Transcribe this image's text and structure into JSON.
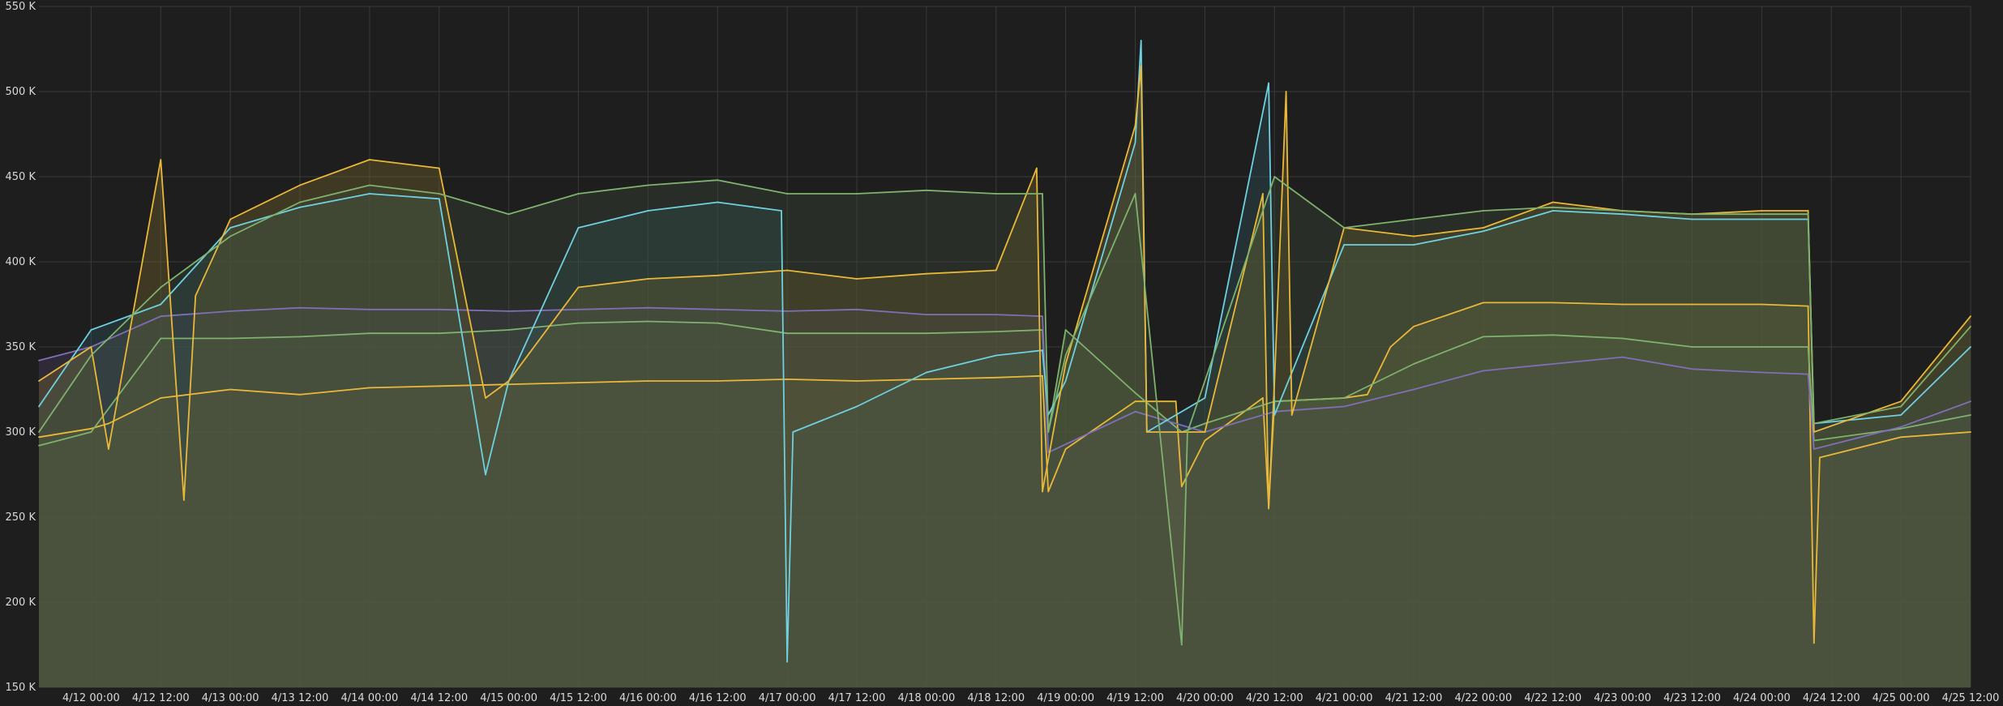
{
  "chart_data": {
    "type": "area",
    "title": "",
    "xlabel": "",
    "ylabel": "",
    "ylim": [
      150000,
      550000
    ],
    "xlim": [
      "2024-04-11T15:00",
      "2024-04-25T12:00"
    ],
    "grid": true,
    "legend": "none",
    "y_ticks": [
      "150 K",
      "200 K",
      "250 K",
      "300 K",
      "350 K",
      "400 K",
      "450 K",
      "500 K",
      "550 K"
    ],
    "x_ticks": [
      "4/12 00:00",
      "4/12 12:00",
      "4/13 00:00",
      "4/13 12:00",
      "4/14 00:00",
      "4/14 12:00",
      "4/15 00:00",
      "4/15 12:00",
      "4/16 00:00",
      "4/16 12:00",
      "4/17 00:00",
      "4/17 12:00",
      "4/18 00:00",
      "4/18 12:00",
      "4/19 00:00",
      "4/19 12:00",
      "4/20 00:00",
      "4/20 12:00",
      "4/21 00:00",
      "4/21 12:00",
      "4/22 00:00",
      "4/22 12:00",
      "4/23 00:00",
      "4/23 12:00",
      "4/24 00:00",
      "4/24 12:00",
      "4/25 00:00",
      "4/25 12:00"
    ],
    "colors": {
      "background": "#1f1e1f",
      "grid": "#3a3a3a",
      "text": "#d8d9da"
    },
    "series": [
      {
        "color": "#eab839",
        "fill": "#7a7a3a",
        "values": [
          [
            "2024-04-11T15:00",
            297000
          ],
          [
            "2024-04-12T00:00",
            302000
          ],
          [
            "2024-04-12T03:00",
            305000
          ],
          [
            "2024-04-12T12:00",
            320000
          ],
          [
            "2024-04-13T00:00",
            325000
          ],
          [
            "2024-04-13T12:00",
            322000
          ],
          [
            "2024-04-14T00:00",
            326000
          ],
          [
            "2024-04-14T12:00",
            327000
          ],
          [
            "2024-04-15T00:00",
            328000
          ],
          [
            "2024-04-15T12:00",
            329000
          ],
          [
            "2024-04-16T00:00",
            330000
          ],
          [
            "2024-04-16T12:00",
            330000
          ],
          [
            "2024-04-17T00:00",
            331000
          ],
          [
            "2024-04-17T12:00",
            330000
          ],
          [
            "2024-04-18T00:00",
            331000
          ],
          [
            "2024-04-18T12:00",
            332000
          ],
          [
            "2024-04-18T20:00",
            333000
          ],
          [
            "2024-04-18T21:00",
            265000
          ],
          [
            "2024-04-19T00:00",
            290000
          ],
          [
            "2024-04-19T12:00",
            318000
          ],
          [
            "2024-04-19T19:00",
            318000
          ],
          [
            "2024-04-19T20:00",
            268000
          ],
          [
            "2024-04-20T00:00",
            295000
          ],
          [
            "2024-04-20T10:00",
            320000
          ],
          [
            "2024-04-20T11:00",
            256000
          ],
          [
            "2024-04-20T12:00",
            318000
          ],
          [
            "2024-04-21T00:00",
            320000
          ],
          [
            "2024-04-21T04:00",
            322000
          ],
          [
            "2024-04-21T08:00",
            350000
          ],
          [
            "2024-04-21T12:00",
            362000
          ],
          [
            "2024-04-22T00:00",
            376000
          ],
          [
            "2024-04-22T12:00",
            376000
          ],
          [
            "2024-04-23T00:00",
            375000
          ],
          [
            "2024-04-23T12:00",
            375000
          ],
          [
            "2024-04-24T00:00",
            375000
          ],
          [
            "2024-04-24T08:00",
            374000
          ],
          [
            "2024-04-24T09:00",
            176000
          ],
          [
            "2024-04-24T10:00",
            285000
          ],
          [
            "2024-04-25T00:00",
            297000
          ],
          [
            "2024-04-25T12:00",
            300000
          ]
        ]
      },
      {
        "color": "#7eb26d",
        "fill": "#4e6a3e",
        "values": [
          [
            "2024-04-11T15:00",
            292000
          ],
          [
            "2024-04-12T00:00",
            300000
          ],
          [
            "2024-04-12T12:00",
            355000
          ],
          [
            "2024-04-13T00:00",
            355000
          ],
          [
            "2024-04-13T12:00",
            356000
          ],
          [
            "2024-04-14T00:00",
            358000
          ],
          [
            "2024-04-14T12:00",
            358000
          ],
          [
            "2024-04-15T00:00",
            360000
          ],
          [
            "2024-04-15T12:00",
            364000
          ],
          [
            "2024-04-16T00:00",
            365000
          ],
          [
            "2024-04-16T12:00",
            364000
          ],
          [
            "2024-04-17T00:00",
            358000
          ],
          [
            "2024-04-17T12:00",
            358000
          ],
          [
            "2024-04-18T00:00",
            358000
          ],
          [
            "2024-04-18T12:00",
            359000
          ],
          [
            "2024-04-18T20:00",
            360000
          ],
          [
            "2024-04-18T21:00",
            300000
          ],
          [
            "2024-04-19T00:00",
            360000
          ],
          [
            "2024-04-19T12:00",
            323000
          ],
          [
            "2024-04-19T20:00",
            300000
          ],
          [
            "2024-04-20T00:00",
            305000
          ],
          [
            "2024-04-20T12:00",
            318000
          ],
          [
            "2024-04-21T00:00",
            320000
          ],
          [
            "2024-04-21T12:00",
            340000
          ],
          [
            "2024-04-22T00:00",
            356000
          ],
          [
            "2024-04-22T12:00",
            357000
          ],
          [
            "2024-04-23T00:00",
            355000
          ],
          [
            "2024-04-23T12:00",
            350000
          ],
          [
            "2024-04-24T00:00",
            350000
          ],
          [
            "2024-04-24T08:00",
            350000
          ],
          [
            "2024-04-24T09:00",
            295000
          ],
          [
            "2024-04-25T00:00",
            302000
          ],
          [
            "2024-04-25T12:00",
            310000
          ]
        ]
      },
      {
        "color": "#806eb7",
        "fill": "#4a4366",
        "values": [
          [
            "2024-04-11T15:00",
            342000
          ],
          [
            "2024-04-12T00:00",
            350000
          ],
          [
            "2024-04-12T12:00",
            368000
          ],
          [
            "2024-04-13T00:00",
            371000
          ],
          [
            "2024-04-13T12:00",
            373000
          ],
          [
            "2024-04-14T00:00",
            372000
          ],
          [
            "2024-04-14T12:00",
            372000
          ],
          [
            "2024-04-15T00:00",
            371000
          ],
          [
            "2024-04-15T12:00",
            372000
          ],
          [
            "2024-04-16T00:00",
            373000
          ],
          [
            "2024-04-16T12:00",
            372000
          ],
          [
            "2024-04-17T00:00",
            371000
          ],
          [
            "2024-04-17T12:00",
            372000
          ],
          [
            "2024-04-18T00:00",
            369000
          ],
          [
            "2024-04-18T12:00",
            369000
          ],
          [
            "2024-04-18T20:00",
            368000
          ],
          [
            "2024-04-18T21:00",
            288000
          ],
          [
            "2024-04-19T12:00",
            312000
          ],
          [
            "2024-04-20T00:00",
            300000
          ],
          [
            "2024-04-20T12:00",
            312000
          ],
          [
            "2024-04-21T00:00",
            315000
          ],
          [
            "2024-04-21T12:00",
            325000
          ],
          [
            "2024-04-22T00:00",
            336000
          ],
          [
            "2024-04-22T12:00",
            340000
          ],
          [
            "2024-04-23T00:00",
            344000
          ],
          [
            "2024-04-23T12:00",
            337000
          ],
          [
            "2024-04-24T00:00",
            335000
          ],
          [
            "2024-04-24T08:00",
            334000
          ],
          [
            "2024-04-24T09:00",
            290000
          ],
          [
            "2024-04-25T00:00",
            303000
          ],
          [
            "2024-04-25T12:00",
            318000
          ]
        ]
      },
      {
        "color": "#6ed0e0",
        "fill": "#2f5a62",
        "values": [
          [
            "2024-04-11T15:00",
            315000
          ],
          [
            "2024-04-12T00:00",
            360000
          ],
          [
            "2024-04-12T12:00",
            375000
          ],
          [
            "2024-04-13T00:00",
            420000
          ],
          [
            "2024-04-13T12:00",
            432000
          ],
          [
            "2024-04-14T00:00",
            440000
          ],
          [
            "2024-04-14T12:00",
            437000
          ],
          [
            "2024-04-14T20:00",
            275000
          ],
          [
            "2024-04-15T00:00",
            330000
          ],
          [
            "2024-04-15T12:00",
            420000
          ],
          [
            "2024-04-16T00:00",
            430000
          ],
          [
            "2024-04-16T12:00",
            435000
          ],
          [
            "2024-04-16T23:00",
            430000
          ],
          [
            "2024-04-17T00:00",
            165000
          ],
          [
            "2024-04-17T01:00",
            300000
          ],
          [
            "2024-04-17T12:00",
            315000
          ],
          [
            "2024-04-18T00:00",
            335000
          ],
          [
            "2024-04-18T12:00",
            345000
          ],
          [
            "2024-04-18T20:00",
            348000
          ],
          [
            "2024-04-18T21:00",
            310000
          ],
          [
            "2024-04-19T00:00",
            330000
          ],
          [
            "2024-04-19T12:00",
            470000
          ],
          [
            "2024-04-19T13:00",
            530000
          ],
          [
            "2024-04-19T14:00",
            300000
          ],
          [
            "2024-04-20T00:00",
            320000
          ],
          [
            "2024-04-20T11:00",
            505000
          ],
          [
            "2024-04-20T12:00",
            310000
          ],
          [
            "2024-04-21T00:00",
            410000
          ],
          [
            "2024-04-21T12:00",
            410000
          ],
          [
            "2024-04-22T00:00",
            418000
          ],
          [
            "2024-04-22T12:00",
            430000
          ],
          [
            "2024-04-23T00:00",
            428000
          ],
          [
            "2024-04-23T12:00",
            425000
          ],
          [
            "2024-04-24T00:00",
            425000
          ],
          [
            "2024-04-24T08:00",
            425000
          ],
          [
            "2024-04-24T09:00",
            305000
          ],
          [
            "2024-04-25T00:00",
            310000
          ],
          [
            "2024-04-25T12:00",
            350000
          ]
        ]
      },
      {
        "color": "#eab839",
        "fill": "#7a6a2a",
        "values": [
          [
            "2024-04-11T15:00",
            330000
          ],
          [
            "2024-04-12T00:00",
            350000
          ],
          [
            "2024-04-12T03:00",
            290000
          ],
          [
            "2024-04-12T12:00",
            460000
          ],
          [
            "2024-04-12T16:00",
            260000
          ],
          [
            "2024-04-12T18:00",
            380000
          ],
          [
            "2024-04-13T00:00",
            425000
          ],
          [
            "2024-04-13T12:00",
            445000
          ],
          [
            "2024-04-14T00:00",
            460000
          ],
          [
            "2024-04-14T12:00",
            455000
          ],
          [
            "2024-04-14T20:00",
            320000
          ],
          [
            "2024-04-15T00:00",
            330000
          ],
          [
            "2024-04-15T12:00",
            385000
          ],
          [
            "2024-04-16T00:00",
            390000
          ],
          [
            "2024-04-16T12:00",
            392000
          ],
          [
            "2024-04-17T00:00",
            395000
          ],
          [
            "2024-04-17T12:00",
            390000
          ],
          [
            "2024-04-18T00:00",
            393000
          ],
          [
            "2024-04-18T12:00",
            395000
          ],
          [
            "2024-04-18T19:00",
            455000
          ],
          [
            "2024-04-18T20:00",
            265000
          ],
          [
            "2024-04-19T00:00",
            340000
          ],
          [
            "2024-04-19T12:00",
            480000
          ],
          [
            "2024-04-19T13:00",
            515000
          ],
          [
            "2024-04-19T14:00",
            300000
          ],
          [
            "2024-04-20T00:00",
            300000
          ],
          [
            "2024-04-20T10:00",
            440000
          ],
          [
            "2024-04-20T11:00",
            255000
          ],
          [
            "2024-04-20T12:00",
            330000
          ],
          [
            "2024-04-20T14:00",
            500000
          ],
          [
            "2024-04-20T15:00",
            310000
          ],
          [
            "2024-04-21T00:00",
            420000
          ],
          [
            "2024-04-21T12:00",
            415000
          ],
          [
            "2024-04-22T00:00",
            420000
          ],
          [
            "2024-04-22T12:00",
            435000
          ],
          [
            "2024-04-23T00:00",
            430000
          ],
          [
            "2024-04-23T12:00",
            428000
          ],
          [
            "2024-04-24T00:00",
            430000
          ],
          [
            "2024-04-24T08:00",
            430000
          ],
          [
            "2024-04-24T09:00",
            300000
          ],
          [
            "2024-04-25T00:00",
            318000
          ],
          [
            "2024-04-25T12:00",
            368000
          ]
        ]
      },
      {
        "color": "#7eb26d",
        "fill": "#3c4a36",
        "values": [
          [
            "2024-04-11T15:00",
            300000
          ],
          [
            "2024-04-12T00:00",
            345000
          ],
          [
            "2024-04-12T12:00",
            385000
          ],
          [
            "2024-04-13T00:00",
            415000
          ],
          [
            "2024-04-13T12:00",
            435000
          ],
          [
            "2024-04-14T00:00",
            445000
          ],
          [
            "2024-04-14T12:00",
            440000
          ],
          [
            "2024-04-15T00:00",
            428000
          ],
          [
            "2024-04-15T12:00",
            440000
          ],
          [
            "2024-04-16T00:00",
            445000
          ],
          [
            "2024-04-16T12:00",
            448000
          ],
          [
            "2024-04-17T00:00",
            440000
          ],
          [
            "2024-04-17T12:00",
            440000
          ],
          [
            "2024-04-18T00:00",
            442000
          ],
          [
            "2024-04-18T12:00",
            440000
          ],
          [
            "2024-04-18T20:00",
            440000
          ],
          [
            "2024-04-18T21:00",
            300000
          ],
          [
            "2024-04-19T00:00",
            345000
          ],
          [
            "2024-04-19T12:00",
            440000
          ],
          [
            "2024-04-19T20:00",
            175000
          ],
          [
            "2024-04-19T21:00",
            300000
          ],
          [
            "2024-04-20T00:00",
            330000
          ],
          [
            "2024-04-20T12:00",
            450000
          ],
          [
            "2024-04-21T00:00",
            420000
          ],
          [
            "2024-04-21T12:00",
            425000
          ],
          [
            "2024-04-22T00:00",
            430000
          ],
          [
            "2024-04-22T12:00",
            432000
          ],
          [
            "2024-04-23T00:00",
            430000
          ],
          [
            "2024-04-23T12:00",
            428000
          ],
          [
            "2024-04-24T00:00",
            428000
          ],
          [
            "2024-04-24T08:00",
            428000
          ],
          [
            "2024-04-24T09:00",
            305000
          ],
          [
            "2024-04-25T00:00",
            315000
          ],
          [
            "2024-04-25T12:00",
            362000
          ]
        ]
      }
    ]
  }
}
